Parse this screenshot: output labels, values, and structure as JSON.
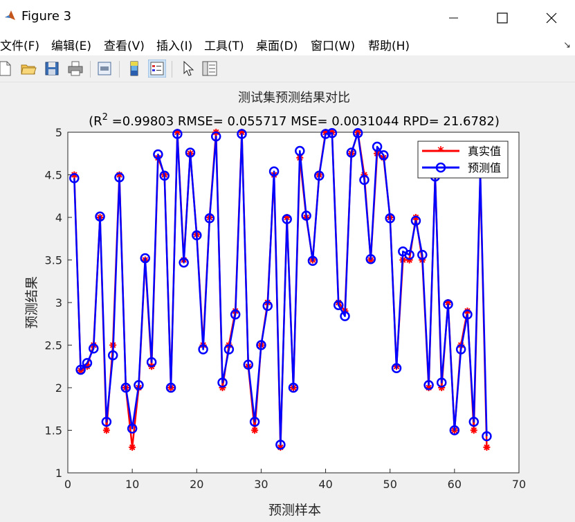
{
  "window": {
    "title": "Figure 3"
  },
  "menu": [
    "文件(F)",
    "编辑(E)",
    "查看(V)",
    "插入(I)",
    "工具(T)",
    "桌面(D)",
    "窗口(W)",
    "帮助(H)"
  ],
  "toolbar_icons": [
    "new-file-icon",
    "open-folder-icon",
    "save-icon",
    "print-icon",
    "print-preview-icon",
    "colorbar-icon",
    "legend-icon",
    "pointer-icon",
    "property-inspector-icon"
  ],
  "colors": {
    "true_series": "#ff0000",
    "pred_series": "#0000ff",
    "background": "#f0f0f0"
  },
  "chart_data": {
    "type": "line",
    "title": "测试集预测结果对比",
    "subtitle": {
      "prefix": "(R",
      "sup": "2",
      "rest": " =0.99803 RMSE= 0.055717 MSE= 0.0031044 RPD= 21.6782)"
    },
    "xlabel": "预测样本",
    "ylabel": "预测结果",
    "xlim": [
      0,
      70
    ],
    "ylim": [
      1,
      5
    ],
    "xticks": [
      "0",
      "10",
      "20",
      "30",
      "40",
      "50",
      "60",
      "70"
    ],
    "yticks": [
      "1",
      "1.5",
      "2",
      "2.5",
      "3",
      "3.5",
      "4",
      "4.5",
      "5"
    ],
    "grid": false,
    "legend_position": "top-right",
    "x": [
      1,
      2,
      3,
      4,
      5,
      6,
      7,
      8,
      9,
      10,
      11,
      12,
      13,
      14,
      15,
      16,
      17,
      18,
      19,
      20,
      21,
      22,
      23,
      24,
      25,
      26,
      27,
      28,
      29,
      30,
      31,
      32,
      33,
      34,
      35,
      36,
      37,
      38,
      39,
      40,
      41,
      42,
      43,
      44,
      45,
      46,
      47,
      48,
      49,
      50,
      51,
      52,
      53,
      54,
      55,
      56,
      57,
      58,
      59,
      60,
      61,
      62,
      63,
      64,
      65
    ],
    "series": [
      {
        "name": "真实值",
        "marker": "asterisk",
        "values": [
          4.5,
          2.2,
          2.25,
          2.5,
          4.0,
          1.5,
          2.5,
          4.5,
          2.0,
          1.3,
          2.0,
          3.5,
          2.25,
          4.7,
          4.5,
          2.0,
          5.0,
          3.5,
          4.75,
          3.8,
          2.5,
          4.0,
          5.0,
          2.0,
          2.5,
          2.9,
          5.0,
          2.25,
          1.5,
          2.5,
          3.0,
          4.5,
          1.3,
          4.0,
          2.0,
          4.7,
          4.0,
          3.5,
          4.5,
          5.0,
          5.0,
          3.0,
          2.9,
          4.75,
          5.0,
          4.5,
          3.5,
          4.75,
          4.7,
          4.0,
          2.25,
          3.5,
          3.5,
          4.0,
          3.5,
          2.0,
          4.5,
          2.0,
          3.0,
          1.5,
          2.5,
          2.9,
          1.5,
          4.5,
          1.3
        ]
      },
      {
        "name": "预测值",
        "marker": "circle",
        "values": [
          4.46,
          2.21,
          2.29,
          2.46,
          4.01,
          1.6,
          2.38,
          4.47,
          2.0,
          1.52,
          2.03,
          3.52,
          2.3,
          4.74,
          4.49,
          2.0,
          4.98,
          3.47,
          4.76,
          3.79,
          2.45,
          3.99,
          4.95,
          2.06,
          2.45,
          2.86,
          4.98,
          2.27,
          1.6,
          2.5,
          2.96,
          4.54,
          1.33,
          3.98,
          2.0,
          4.78,
          4.02,
          3.49,
          4.49,
          4.98,
          4.99,
          2.97,
          2.84,
          4.76,
          4.99,
          4.44,
          3.51,
          4.83,
          4.73,
          3.99,
          2.23,
          3.6,
          3.56,
          3.96,
          3.56,
          2.03,
          4.48,
          2.06,
          2.98,
          1.5,
          2.45,
          2.86,
          1.6,
          4.53,
          1.43
        ]
      }
    ]
  }
}
